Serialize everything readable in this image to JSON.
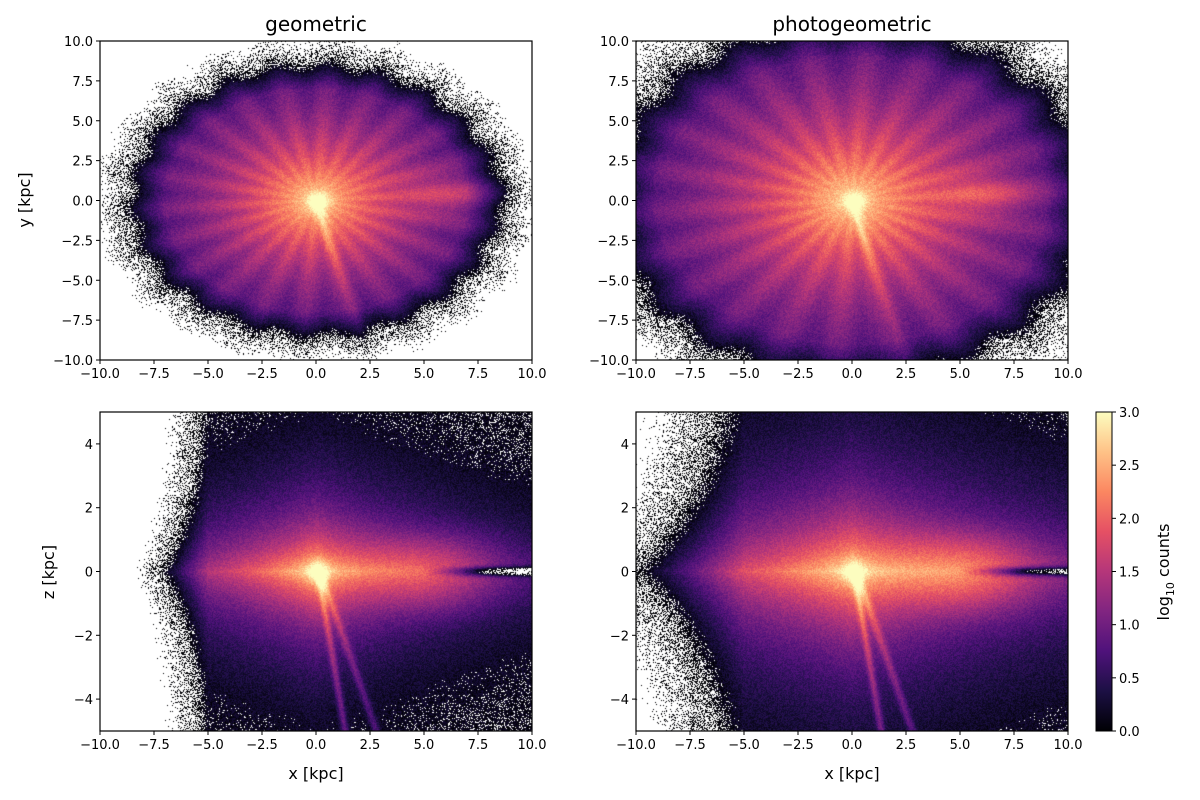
{
  "figure": {
    "colormap": "magma",
    "colorbar": {
      "label_prefix": "log",
      "label_sub": "10",
      "label_suffix": " counts",
      "ticks": [
        "0.0",
        "0.5",
        "1.0",
        "1.5",
        "2.0",
        "2.5",
        "3.0"
      ],
      "min": 0.0,
      "max": 3.0
    },
    "colors": [
      "#000004",
      "#1c1044",
      "#4f127b",
      "#812581",
      "#b5367a",
      "#e55064",
      "#fb8761",
      "#fec287",
      "#fcfdbf"
    ]
  },
  "chart_data": [
    {
      "type": "heatmap",
      "title": "geometric",
      "xlabel": "",
      "ylabel": "y [kpc]",
      "xlim": [
        -10,
        10
      ],
      "ylim": [
        -10,
        10
      ],
      "xticks": [
        "−10.0",
        "−7.5",
        "−5.0",
        "−2.5",
        "0.0",
        "2.5",
        "5.0",
        "7.5",
        "10.0"
      ],
      "yticks": [
        "−10.0",
        "−7.5",
        "−5.0",
        "−2.5",
        "0.0",
        "2.5",
        "5.0",
        "7.5",
        "10.0"
      ],
      "projection": "x-y",
      "distance_method": "geometric",
      "value": "log10 counts"
    },
    {
      "type": "heatmap",
      "title": "photogeometric",
      "xlabel": "",
      "ylabel": "",
      "xlim": [
        -10,
        10
      ],
      "ylim": [
        -10,
        10
      ],
      "xticks": [
        "−10.0",
        "−7.5",
        "−5.0",
        "−2.5",
        "0.0",
        "2.5",
        "5.0",
        "7.5",
        "10.0"
      ],
      "yticks": [
        "−10.0",
        "−7.5",
        "−5.0",
        "−2.5",
        "0.0",
        "2.5",
        "5.0",
        "7.5",
        "10.0"
      ],
      "projection": "x-y",
      "distance_method": "photogeometric",
      "value": "log10 counts"
    },
    {
      "type": "heatmap",
      "title": "",
      "xlabel": "x [kpc]",
      "ylabel": "z [kpc]",
      "xlim": [
        -10,
        10
      ],
      "ylim": [
        -5,
        5
      ],
      "xticks": [
        "−10.0",
        "−7.5",
        "−5.0",
        "−2.5",
        "0.0",
        "2.5",
        "5.0",
        "7.5",
        "10.0"
      ],
      "yticks": [
        "−4",
        "−2",
        "0",
        "2",
        "4"
      ],
      "projection": "x-z",
      "distance_method": "geometric",
      "value": "log10 counts"
    },
    {
      "type": "heatmap",
      "title": "",
      "xlabel": "x [kpc]",
      "ylabel": "",
      "xlim": [
        -10,
        10
      ],
      "ylim": [
        -5,
        5
      ],
      "xticks": [
        "−10.0",
        "−7.5",
        "−5.0",
        "−2.5",
        "0.0",
        "2.5",
        "5.0",
        "7.5",
        "10.0"
      ],
      "yticks": [
        "−4",
        "−2",
        "0",
        "2",
        "4"
      ],
      "projection": "x-z",
      "distance_method": "photogeometric",
      "value": "log10 counts"
    }
  ]
}
